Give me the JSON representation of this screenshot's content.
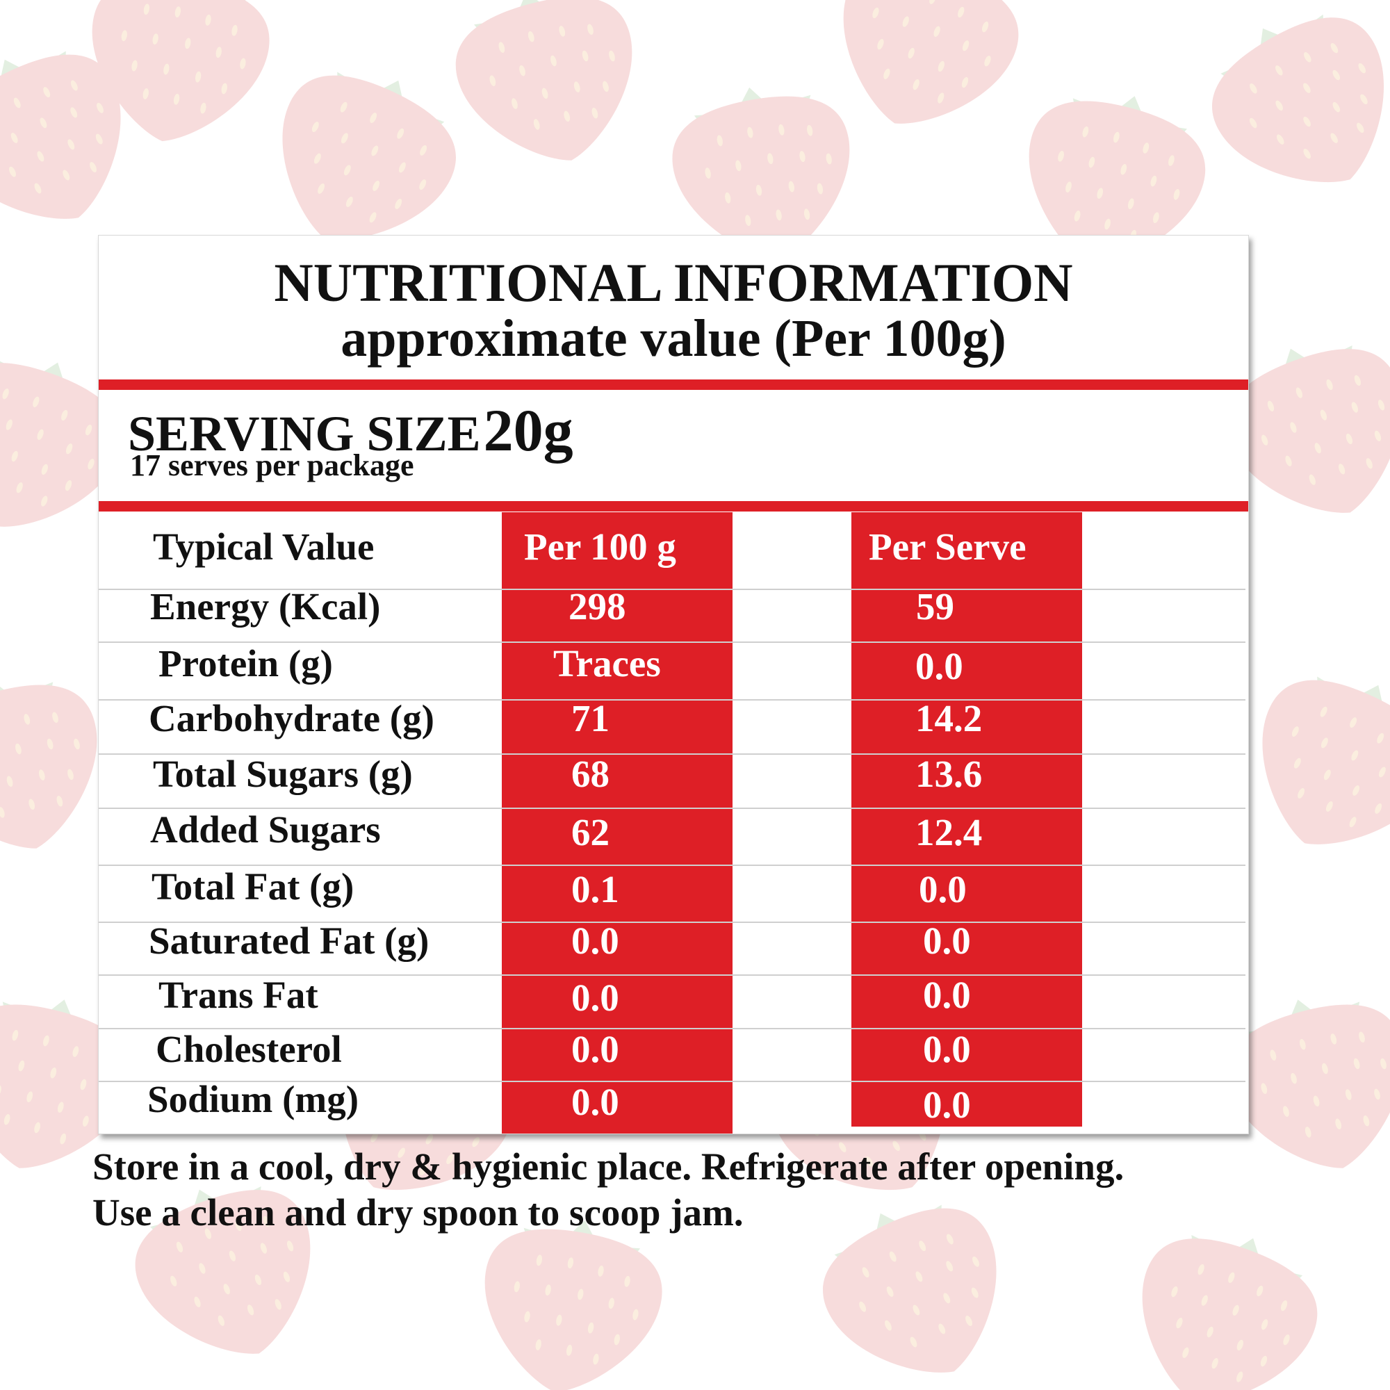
{
  "label": {
    "title": "NUTRITIONAL INFORMATION",
    "subtitle": "approximate value (Per 100g)",
    "serving_size_label": "SERVING SIZE",
    "serving_size_value": "20g",
    "serves_per_package": "17 serves per package"
  },
  "table": {
    "headers": {
      "nutrient": "Typical Value",
      "per_100g": "Per 100 g",
      "per_serve": "Per Serve"
    },
    "rows": [
      {
        "nutrient": "Energy (Kcal)",
        "per_100g": "298",
        "per_serve": "59"
      },
      {
        "nutrient": "Protein (g)",
        "per_100g": "Traces",
        "per_serve": "0.0"
      },
      {
        "nutrient": "Carbohydrate (g)",
        "per_100g": "71",
        "per_serve": "14.2"
      },
      {
        "nutrient": "Total Sugars (g)",
        "per_100g": "68",
        "per_serve": "13.6"
      },
      {
        "nutrient": "Added Sugars",
        "per_100g": "62",
        "per_serve": "12.4"
      },
      {
        "nutrient": "Total Fat (g)",
        "per_100g": "0.1",
        "per_serve": "0.0"
      },
      {
        "nutrient": "Saturated Fat (g)",
        "per_100g": "0.0",
        "per_serve": "0.0"
      },
      {
        "nutrient": "Trans Fat",
        "per_100g": "0.0",
        "per_serve": "0.0"
      },
      {
        "nutrient": "Cholesterol",
        "per_100g": "0.0",
        "per_serve": "0.0"
      },
      {
        "nutrient": "Sodium (mg)",
        "per_100g": "0.0",
        "per_serve": "0.0"
      }
    ]
  },
  "storage": {
    "line1": "Store in a cool, dry & hygienic place. Refrigerate after opening.",
    "line2": "Use a clean and dry spoon to scoop jam."
  },
  "colors": {
    "accent_red": "#de1f26",
    "background_strawberry": "#f7dcdc",
    "background_leaf": "#e3efe1"
  },
  "background_pattern": "strawberry-pattern"
}
